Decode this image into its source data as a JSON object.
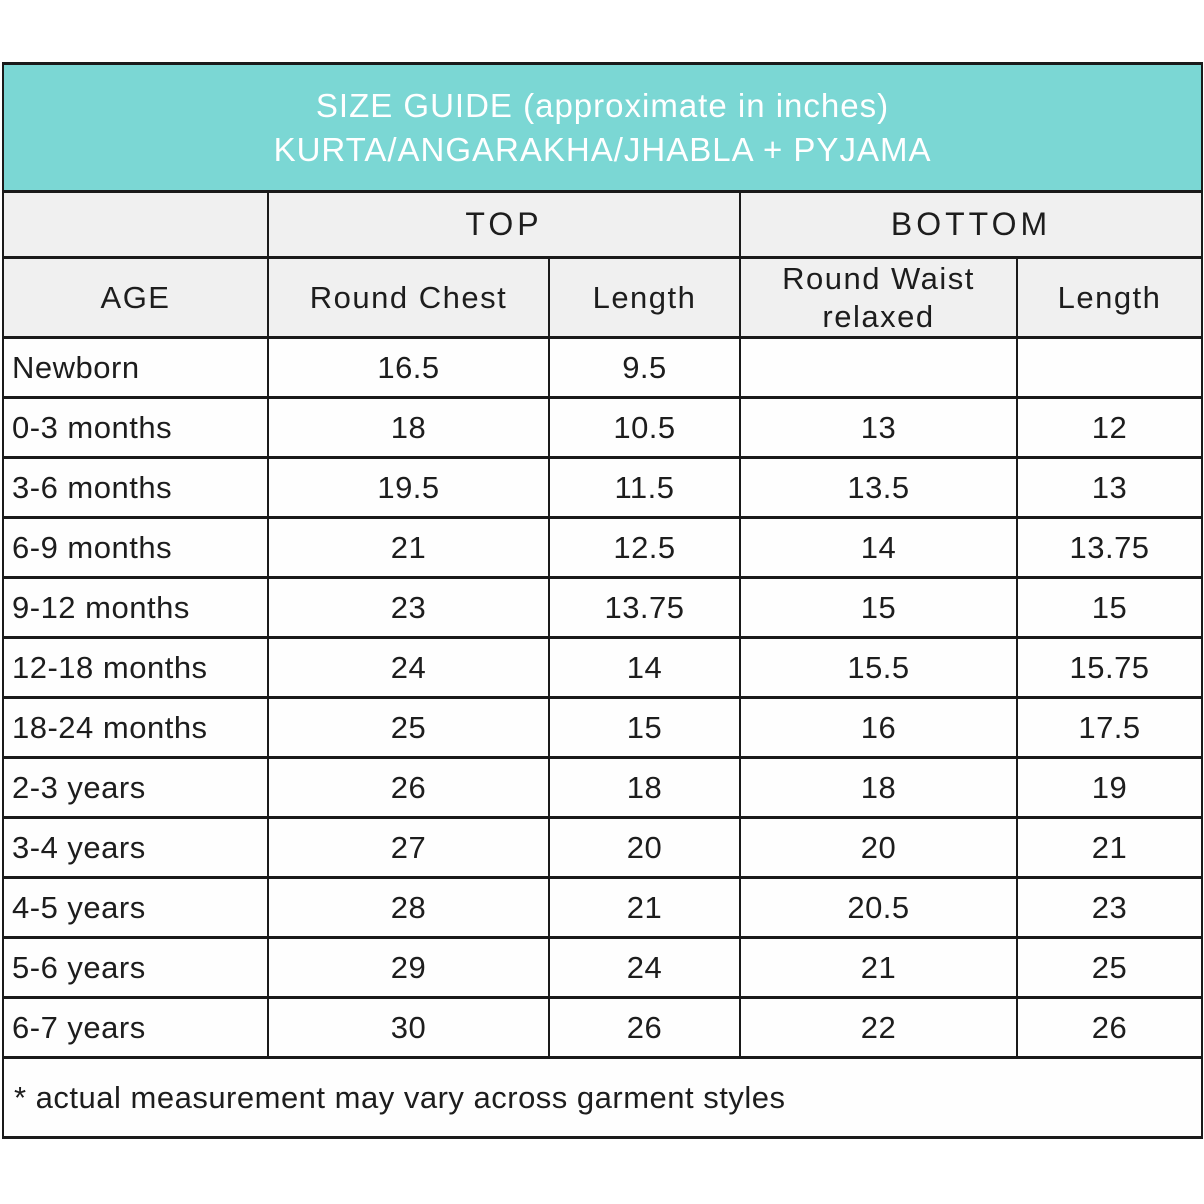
{
  "chart_data": {
    "type": "table",
    "title": "SIZE GUIDE (approximate in inches)",
    "subtitle": "KURTA/ANGARAKHA/JHABLA + PYJAMA",
    "column_groups": [
      {
        "label": "TOP",
        "columns": [
          "Round Chest",
          "Length"
        ]
      },
      {
        "label": "BOTTOM",
        "columns": [
          "Round Waist relaxed",
          "Length"
        ]
      }
    ],
    "columns": [
      "AGE",
      "Round Chest",
      "Length",
      "Round Waist relaxed",
      "Length"
    ],
    "rows": [
      [
        "Newborn",
        "16.5",
        "9.5",
        "",
        ""
      ],
      [
        "0-3 months",
        "18",
        "10.5",
        "13",
        "12"
      ],
      [
        "3-6 months",
        "19.5",
        "11.5",
        "13.5",
        "13"
      ],
      [
        "6-9 months",
        "21",
        "12.5",
        "14",
        "13.75"
      ],
      [
        "9-12 months",
        "23",
        "13.75",
        "15",
        "15"
      ],
      [
        "12-18 months",
        "24",
        "14",
        "15.5",
        "15.75"
      ],
      [
        "18-24 months",
        "25",
        "15",
        "16",
        "17.5"
      ],
      [
        "2-3 years",
        "26",
        "18",
        "18",
        "19"
      ],
      [
        "3-4 years",
        "27",
        "20",
        "20",
        "21"
      ],
      [
        "4-5 years",
        "28",
        "21",
        "20.5",
        "23"
      ],
      [
        "5-6 years",
        "29",
        "24",
        "21",
        "25"
      ],
      [
        "6-7 years",
        "30",
        "26",
        "22",
        "26"
      ]
    ],
    "footnote": "* actual measurement may vary across garment styles"
  },
  "colors": {
    "title_band_bg": "#7bd7d4",
    "title_text": "#ffffff",
    "header_cell_bg": "#f0f0f0",
    "data_cell_bg": "#fefefe",
    "border": "#1a1a1a",
    "body_text": "#1d1d1d"
  }
}
